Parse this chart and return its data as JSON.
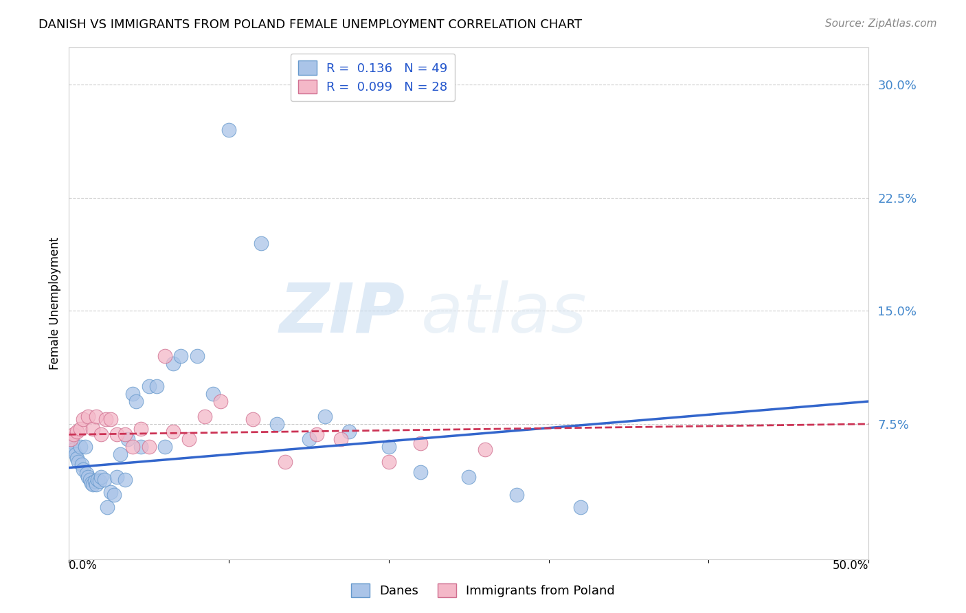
{
  "title": "DANISH VS IMMIGRANTS FROM POLAND FEMALE UNEMPLOYMENT CORRELATION CHART",
  "source": "Source: ZipAtlas.com",
  "ylabel": "Female Unemployment",
  "right_yticks": [
    "30.0%",
    "22.5%",
    "15.0%",
    "7.5%"
  ],
  "right_ytick_vals": [
    0.3,
    0.225,
    0.15,
    0.075
  ],
  "xlim": [
    0.0,
    0.5
  ],
  "ylim": [
    -0.015,
    0.325
  ],
  "danes_color": "#aac4e8",
  "danes_edge_color": "#6699cc",
  "poland_color": "#f4b8c8",
  "poland_edge_color": "#d07090",
  "danes_line_color": "#3366cc",
  "poland_line_color": "#cc3355",
  "watermark_zip": "ZIP",
  "watermark_atlas": "atlas",
  "danes_x": [
    0.001,
    0.002,
    0.003,
    0.004,
    0.005,
    0.006,
    0.007,
    0.008,
    0.009,
    0.01,
    0.011,
    0.012,
    0.013,
    0.014,
    0.015,
    0.016,
    0.017,
    0.018,
    0.019,
    0.02,
    0.022,
    0.024,
    0.026,
    0.028,
    0.03,
    0.032,
    0.035,
    0.037,
    0.04,
    0.042,
    0.045,
    0.05,
    0.055,
    0.06,
    0.065,
    0.07,
    0.08,
    0.09,
    0.1,
    0.12,
    0.13,
    0.15,
    0.16,
    0.175,
    0.2,
    0.22,
    0.25,
    0.28,
    0.32
  ],
  "danes_y": [
    0.06,
    0.063,
    0.058,
    0.055,
    0.052,
    0.05,
    0.06,
    0.048,
    0.045,
    0.06,
    0.042,
    0.04,
    0.038,
    0.036,
    0.035,
    0.037,
    0.035,
    0.038,
    0.037,
    0.04,
    0.038,
    0.02,
    0.03,
    0.028,
    0.04,
    0.055,
    0.038,
    0.065,
    0.095,
    0.09,
    0.06,
    0.1,
    0.1,
    0.06,
    0.115,
    0.12,
    0.12,
    0.095,
    0.27,
    0.195,
    0.075,
    0.065,
    0.08,
    0.07,
    0.06,
    0.043,
    0.04,
    0.028,
    0.02
  ],
  "poland_x": [
    0.001,
    0.003,
    0.005,
    0.007,
    0.009,
    0.012,
    0.015,
    0.017,
    0.02,
    0.023,
    0.026,
    0.03,
    0.035,
    0.04,
    0.045,
    0.05,
    0.06,
    0.065,
    0.075,
    0.085,
    0.095,
    0.115,
    0.135,
    0.155,
    0.17,
    0.2,
    0.22,
    0.26
  ],
  "poland_y": [
    0.065,
    0.068,
    0.07,
    0.072,
    0.078,
    0.08,
    0.072,
    0.08,
    0.068,
    0.078,
    0.078,
    0.068,
    0.068,
    0.06,
    0.072,
    0.06,
    0.12,
    0.07,
    0.065,
    0.08,
    0.09,
    0.078,
    0.05,
    0.068,
    0.065,
    0.05,
    0.062,
    0.058
  ],
  "danes_trendline": [
    0.046,
    0.09
  ],
  "poland_trendline": [
    0.068,
    0.075
  ]
}
